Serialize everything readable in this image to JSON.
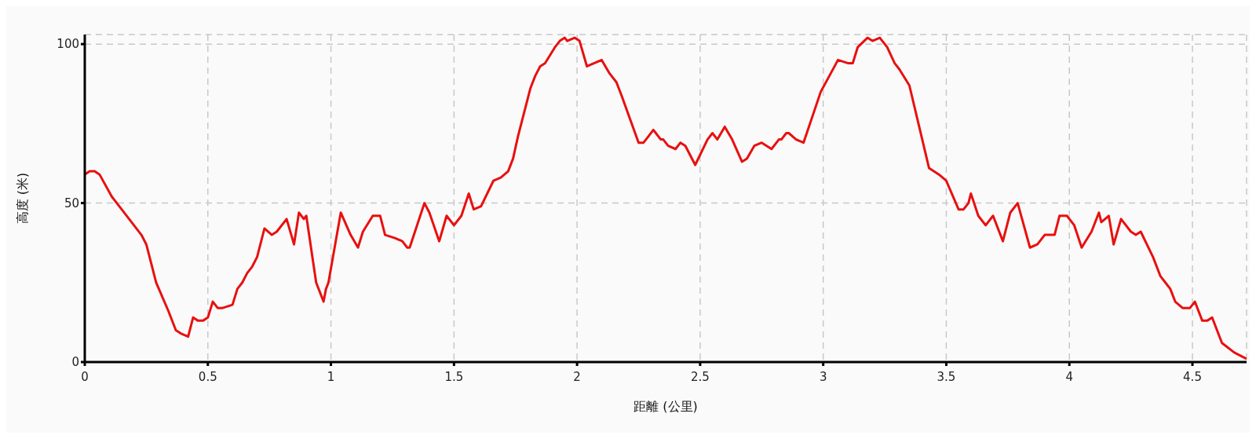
{
  "chart_data": {
    "type": "line",
    "xlabel": "距離 (公里)",
    "ylabel": "高度 (米)",
    "color": "#e8100f",
    "grid": true,
    "xlim": [
      0,
      4.72
    ],
    "ylim": [
      0,
      103
    ],
    "xticks": [
      0,
      0.5,
      1,
      1.5,
      2,
      2.5,
      3,
      3.5,
      4,
      4.5
    ],
    "yticks": [
      0,
      50,
      100
    ],
    "x": [
      0,
      0.02,
      0.04,
      0.06,
      0.11,
      0.15,
      0.19,
      0.23,
      0.25,
      0.29,
      0.34,
      0.37,
      0.39,
      0.42,
      0.44,
      0.46,
      0.48,
      0.5,
      0.52,
      0.54,
      0.56,
      0.6,
      0.62,
      0.64,
      0.66,
      0.68,
      0.7,
      0.73,
      0.76,
      0.78,
      0.82,
      0.85,
      0.87,
      0.89,
      0.9,
      0.94,
      0.97,
      0.98,
      0.99,
      1.04,
      1.08,
      1.11,
      1.13,
      1.17,
      1.2,
      1.22,
      1.26,
      1.29,
      1.31,
      1.32,
      1.38,
      1.4,
      1.44,
      1.47,
      1.5,
      1.53,
      1.56,
      1.58,
      1.61,
      1.66,
      1.69,
      1.72,
      1.74,
      1.76,
      1.81,
      1.83,
      1.85,
      1.87,
      1.91,
      1.93,
      1.95,
      1.96,
      1.99,
      2.01,
      2.04,
      2.07,
      2.1,
      2.13,
      2.16,
      2.18,
      2.25,
      2.27,
      2.29,
      2.31,
      2.32,
      2.34,
      2.35,
      2.37,
      2.4,
      2.42,
      2.44,
      2.48,
      2.53,
      2.55,
      2.57,
      2.6,
      2.63,
      2.67,
      2.69,
      2.72,
      2.75,
      2.77,
      2.79,
      2.82,
      2.83,
      2.85,
      2.86,
      2.89,
      2.92,
      2.99,
      3.06,
      3.1,
      3.12,
      3.14,
      3.18,
      3.2,
      3.23,
      3.26,
      3.29,
      3.31,
      3.35,
      3.39,
      3.43,
      3.47,
      3.5,
      3.55,
      3.57,
      3.59,
      3.6,
      3.63,
      3.66,
      3.69,
      3.73,
      3.76,
      3.79,
      3.84,
      3.87,
      3.9,
      3.94,
      3.96,
      3.99,
      4.02,
      4.05,
      4.09,
      4.12,
      4.13,
      4.16,
      4.18,
      4.21,
      4.25,
      4.27,
      4.29,
      4.34,
      4.37,
      4.39,
      4.41,
      4.43,
      4.46,
      4.49,
      4.51,
      4.54,
      4.56,
      4.58,
      4.62,
      4.67,
      4.72
    ],
    "values": [
      59,
      60,
      60,
      59,
      52,
      48,
      44,
      40,
      37,
      25,
      16,
      10,
      9,
      8,
      14,
      13,
      13,
      14,
      19,
      17,
      17,
      18,
      23,
      25,
      28,
      30,
      33,
      42,
      40,
      41,
      45,
      37,
      47,
      45,
      46,
      25,
      19,
      23,
      25,
      47,
      40,
      36,
      41,
      46,
      46,
      40,
      39,
      38,
      36,
      36,
      50,
      47,
      38,
      46,
      43,
      46,
      53,
      48,
      49,
      57,
      58,
      60,
      64,
      71,
      86,
      90,
      93,
      94,
      99,
      101,
      102,
      101,
      102,
      101,
      93,
      94,
      95,
      91,
      88,
      84,
      69,
      69,
      71,
      73,
      72,
      70,
      70,
      68,
      67,
      69,
      68,
      62,
      70,
      72,
      70,
      74,
      70,
      63,
      64,
      68,
      69,
      68,
      67,
      70,
      70,
      72,
      72,
      70,
      69,
      85,
      95,
      94,
      94,
      99,
      102,
      101,
      102,
      99,
      94,
      92,
      87,
      74,
      61,
      59,
      57,
      48,
      48,
      50,
      53,
      46,
      43,
      46,
      38,
      47,
      50,
      36,
      37,
      40,
      40,
      46,
      46,
      43,
      36,
      41,
      47,
      44,
      46,
      37,
      45,
      41,
      40,
      41,
      33,
      27,
      25,
      23,
      19,
      17,
      17,
      19,
      13,
      13,
      14,
      6,
      3,
      1
    ]
  }
}
